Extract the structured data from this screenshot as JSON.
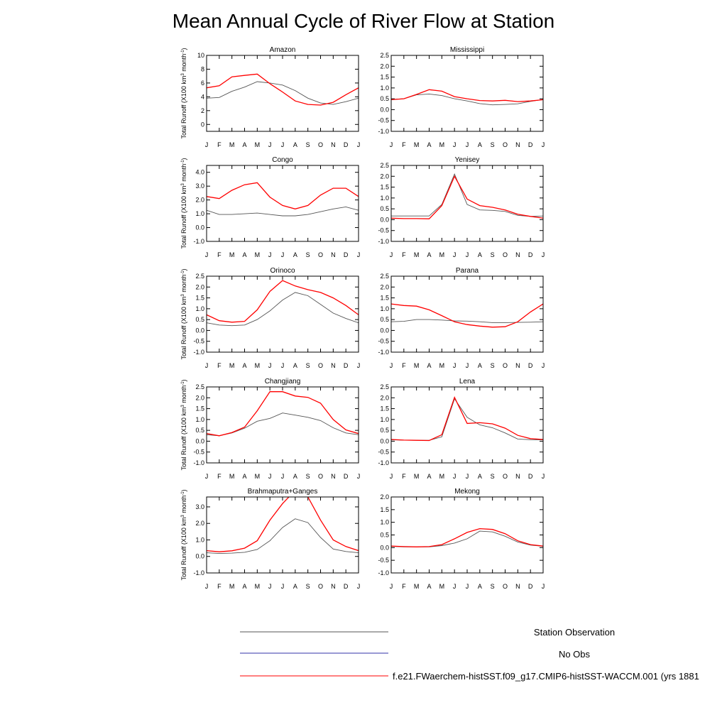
{
  "title": "Mean Annual Cycle of River Flow at Station",
  "ylabel": "Total Runoff (X100 km",
  "ylabel_sup": "3",
  "ylabel_tail": " month",
  "ylabel_sup2": "-1",
  "ylabel_end": ")",
  "legend": [
    {
      "label": "Station Observation",
      "color": "#555555"
    },
    {
      "label": "No Obs",
      "color": "#3333aa"
    },
    {
      "label": "f.e21.FWaerchem-histSST.f09_g17.CMIP6-histSST-WACCM.001 (yrs 1881",
      "color": "#ff0000"
    }
  ],
  "chart_data": [
    {
      "type": "line",
      "title": "Amazon",
      "categories": [
        "J",
        "F",
        "M",
        "A",
        "M",
        "J",
        "J",
        "A",
        "S",
        "O",
        "N",
        "D",
        "J"
      ],
      "ylim": [
        -1,
        10
      ],
      "yticks": [
        "10",
        "8",
        "6",
        "4",
        "2",
        "0"
      ],
      "ytick_values": [
        10,
        8,
        6,
        4,
        2,
        0
      ],
      "series": [
        {
          "name": "Station Observation",
          "color": "#555555",
          "values": [
            3.8,
            3.9,
            4.8,
            5.4,
            6.2,
            6.0,
            5.7,
            4.9,
            3.8,
            3.1,
            2.9,
            3.3,
            3.8
          ]
        },
        {
          "name": "f.e21.FWaerchem-histSST.f09_g17.CMIP6-histSST-WACCM.001",
          "color": "#ff0000",
          "values": [
            5.3,
            5.6,
            6.9,
            7.1,
            7.3,
            5.9,
            4.7,
            3.4,
            2.9,
            2.8,
            3.2,
            4.3,
            5.3
          ]
        }
      ]
    },
    {
      "type": "line",
      "title": "Mississippi",
      "categories": [
        "J",
        "F",
        "M",
        "A",
        "M",
        "J",
        "J",
        "A",
        "S",
        "O",
        "N",
        "D",
        "J"
      ],
      "ylim": [
        -1,
        2.5
      ],
      "yticks": [
        "2.5",
        "2.0",
        "1.5",
        "1.0",
        "0.5",
        "0.0",
        "-0.5",
        "-1.0"
      ],
      "ytick_values": [
        2.5,
        2.0,
        1.5,
        1.0,
        0.5,
        0.0,
        -0.5,
        -1.0
      ],
      "series": [
        {
          "name": "Station Observation",
          "color": "#555555",
          "values": [
            0.47,
            0.5,
            0.68,
            0.72,
            0.65,
            0.5,
            0.4,
            0.28,
            0.22,
            0.24,
            0.27,
            0.38,
            0.47
          ]
        },
        {
          "name": "f.e21.FWaerchem-histSST.f09_g17.CMIP6-histSST-WACCM.001",
          "color": "#ff0000",
          "values": [
            0.46,
            0.5,
            0.7,
            0.92,
            0.85,
            0.6,
            0.5,
            0.42,
            0.4,
            0.43,
            0.37,
            0.4,
            0.46
          ]
        }
      ]
    },
    {
      "type": "line",
      "title": "Congo",
      "categories": [
        "J",
        "F",
        "M",
        "A",
        "M",
        "J",
        "J",
        "A",
        "S",
        "O",
        "N",
        "D",
        "J"
      ],
      "ylim": [
        -1,
        4.5
      ],
      "yticks": [
        "4.0",
        "3.0",
        "2.0",
        "1.0",
        "0.0",
        "-1.0"
      ],
      "ytick_values": [
        4,
        3,
        2,
        1,
        0,
        -1
      ],
      "series": [
        {
          "name": "Station Observation",
          "color": "#555555",
          "values": [
            1.25,
            0.95,
            0.95,
            1.0,
            1.05,
            0.95,
            0.85,
            0.85,
            0.95,
            1.15,
            1.35,
            1.5,
            1.25
          ]
        },
        {
          "name": "f.e21.FWaerchem-histSST.f09_g17.CMIP6-histSST-WACCM.001",
          "color": "#ff0000",
          "values": [
            2.25,
            2.1,
            2.7,
            3.1,
            3.25,
            2.2,
            1.6,
            1.35,
            1.6,
            2.35,
            2.85,
            2.85,
            2.25
          ]
        }
      ]
    },
    {
      "type": "line",
      "title": "Yenisey",
      "categories": [
        "J",
        "F",
        "M",
        "A",
        "M",
        "J",
        "J",
        "A",
        "S",
        "O",
        "N",
        "D",
        "J"
      ],
      "ylim": [
        -1,
        2.5
      ],
      "yticks": [
        "2.5",
        "2.0",
        "1.5",
        "1.0",
        "0.5",
        "0.0",
        "-0.5",
        "-1.0"
      ],
      "ytick_values": [
        2.5,
        2.0,
        1.5,
        1.0,
        0.5,
        0.0,
        -0.5,
        -1.0
      ],
      "series": [
        {
          "name": "Station Observation",
          "color": "#555555",
          "values": [
            0.17,
            0.17,
            0.17,
            0.17,
            0.7,
            2.1,
            0.7,
            0.45,
            0.43,
            0.38,
            0.2,
            0.15,
            0.17
          ]
        },
        {
          "name": "f.e21.FWaerchem-histSST.f09_g17.CMIP6-histSST-WACCM.001",
          "color": "#ff0000",
          "values": [
            0.07,
            0.05,
            0.05,
            0.04,
            0.65,
            2.0,
            0.95,
            0.65,
            0.57,
            0.45,
            0.25,
            0.15,
            0.07
          ]
        }
      ]
    },
    {
      "type": "line",
      "title": "Orinoco",
      "categories": [
        "J",
        "F",
        "M",
        "A",
        "M",
        "J",
        "J",
        "A",
        "S",
        "O",
        "N",
        "D",
        "J"
      ],
      "ylim": [
        -1,
        2.5
      ],
      "yticks": [
        "2.5",
        "2.0",
        "1.5",
        "1.0",
        "0.5",
        "0.0",
        "-0.5",
        "-1.0"
      ],
      "ytick_values": [
        2.5,
        2.0,
        1.5,
        1.0,
        0.5,
        0.0,
        -0.5,
        -1.0
      ],
      "series": [
        {
          "name": "Station Observation",
          "color": "#555555",
          "values": [
            0.35,
            0.25,
            0.22,
            0.25,
            0.5,
            0.9,
            1.4,
            1.75,
            1.6,
            1.2,
            0.8,
            0.55,
            0.35
          ]
        },
        {
          "name": "f.e21.FWaerchem-histSST.f09_g17.CMIP6-histSST-WACCM.001",
          "color": "#ff0000",
          "values": [
            0.72,
            0.45,
            0.38,
            0.42,
            0.95,
            1.8,
            2.3,
            2.05,
            1.88,
            1.75,
            1.5,
            1.15,
            0.72
          ]
        }
      ]
    },
    {
      "type": "line",
      "title": "Parana",
      "categories": [
        "J",
        "F",
        "M",
        "A",
        "M",
        "J",
        "J",
        "A",
        "S",
        "O",
        "N",
        "D",
        "J"
      ],
      "ylim": [
        -1,
        2.5
      ],
      "yticks": [
        "2.5",
        "2.0",
        "1.5",
        "1.0",
        "0.5",
        "0.0",
        "-0.5",
        "-1.0"
      ],
      "ytick_values": [
        2.5,
        2.0,
        1.5,
        1.0,
        0.5,
        0.0,
        -0.5,
        -1.0
      ],
      "series": [
        {
          "name": "Station Observation",
          "color": "#555555",
          "values": [
            0.4,
            0.42,
            0.5,
            0.5,
            0.48,
            0.44,
            0.43,
            0.4,
            0.36,
            0.36,
            0.37,
            0.38,
            0.4
          ]
        },
        {
          "name": "f.e21.FWaerchem-histSST.f09_g17.CMIP6-histSST-WACCM.001",
          "color": "#ff0000",
          "values": [
            1.22,
            1.15,
            1.12,
            0.95,
            0.68,
            0.4,
            0.27,
            0.2,
            0.15,
            0.17,
            0.4,
            0.85,
            1.22
          ]
        }
      ]
    },
    {
      "type": "line",
      "title": "Changjiang",
      "categories": [
        "J",
        "F",
        "M",
        "A",
        "M",
        "J",
        "J",
        "A",
        "S",
        "O",
        "N",
        "D",
        "J"
      ],
      "ylim": [
        -1,
        2.5
      ],
      "yticks": [
        "2.5",
        "2.0",
        "1.5",
        "1.0",
        "0.5",
        "0.0",
        "-0.5",
        "-1.0"
      ],
      "ytick_values": [
        2.5,
        2.0,
        1.5,
        1.0,
        0.5,
        0.0,
        -0.5,
        -1.0
      ],
      "series": [
        {
          "name": "Station Observation",
          "color": "#555555",
          "values": [
            0.3,
            0.25,
            0.38,
            0.6,
            0.92,
            1.05,
            1.3,
            1.2,
            1.1,
            0.95,
            0.62,
            0.38,
            0.3
          ]
        },
        {
          "name": "f.e21.FWaerchem-histSST.f09_g17.CMIP6-histSST-WACCM.001",
          "color": "#ff0000",
          "values": [
            0.35,
            0.25,
            0.4,
            0.65,
            1.4,
            2.28,
            2.28,
            2.08,
            2.02,
            1.75,
            1.0,
            0.52,
            0.35
          ]
        }
      ]
    },
    {
      "type": "line",
      "title": "Lena",
      "categories": [
        "J",
        "F",
        "M",
        "A",
        "M",
        "J",
        "J",
        "A",
        "S",
        "O",
        "N",
        "D",
        "J"
      ],
      "ylim": [
        -1,
        2.5
      ],
      "yticks": [
        "2.5",
        "2.0",
        "1.5",
        "1.0",
        "0.5",
        "0.0",
        "-0.5",
        "-1.0"
      ],
      "ytick_values": [
        2.5,
        2.0,
        1.5,
        1.0,
        0.5,
        0.0,
        -0.5,
        -1.0
      ],
      "series": [
        {
          "name": "Station Observation",
          "color": "#555555",
          "values": [
            0.06,
            0.05,
            0.04,
            0.04,
            0.2,
            1.95,
            1.1,
            0.75,
            0.62,
            0.38,
            0.1,
            0.07,
            0.06
          ]
        },
        {
          "name": "f.e21.FWaerchem-histSST.f09_g17.CMIP6-histSST-WACCM.001",
          "color": "#ff0000",
          "values": [
            0.08,
            0.05,
            0.04,
            0.03,
            0.3,
            2.02,
            0.82,
            0.85,
            0.8,
            0.6,
            0.27,
            0.12,
            0.08
          ]
        }
      ]
    },
    {
      "type": "line",
      "title": "Brahmaputra+Ganges",
      "categories": [
        "J",
        "F",
        "M",
        "A",
        "M",
        "J",
        "J",
        "A",
        "S",
        "O",
        "N",
        "D",
        "J"
      ],
      "ylim": [
        -1,
        3.6
      ],
      "yticks": [
        "3.0",
        "2.0",
        "1.0",
        "0.0",
        "-1.0"
      ],
      "ytick_values": [
        3,
        2,
        1,
        0,
        -1
      ],
      "series": [
        {
          "name": "Station Observation",
          "color": "#555555",
          "values": [
            0.22,
            0.18,
            0.2,
            0.25,
            0.42,
            0.95,
            1.75,
            2.28,
            2.05,
            1.15,
            0.45,
            0.3,
            0.22
          ]
        },
        {
          "name": "f.e21.FWaerchem-histSST.f09_g17.CMIP6-histSST-WACCM.001",
          "color": "#ff0000",
          "values": [
            0.35,
            0.28,
            0.34,
            0.5,
            0.95,
            2.2,
            3.2,
            4.0,
            3.6,
            2.2,
            1.0,
            0.6,
            0.35
          ]
        }
      ]
    },
    {
      "type": "line",
      "title": "Mekong",
      "categories": [
        "J",
        "F",
        "M",
        "A",
        "M",
        "J",
        "J",
        "A",
        "S",
        "O",
        "N",
        "D",
        "J"
      ],
      "ylim": [
        -1,
        2.0
      ],
      "yticks": [
        "2.0",
        "1.5",
        "1.0",
        "0.5",
        "0.0",
        "-0.5",
        "-1.0"
      ],
      "ytick_values": [
        2.0,
        1.5,
        1.0,
        0.5,
        0.0,
        -0.5,
        -1.0
      ],
      "series": [
        {
          "name": "Station Observation",
          "color": "#555555",
          "values": [
            0.05,
            0.03,
            0.03,
            0.03,
            0.08,
            0.18,
            0.35,
            0.65,
            0.62,
            0.45,
            0.22,
            0.1,
            0.05
          ]
        },
        {
          "name": "f.e21.FWaerchem-histSST.f09_g17.CMIP6-histSST-WACCM.001",
          "color": "#ff0000",
          "values": [
            0.06,
            0.04,
            0.03,
            0.04,
            0.12,
            0.35,
            0.6,
            0.75,
            0.72,
            0.55,
            0.27,
            0.12,
            0.06
          ]
        }
      ]
    }
  ]
}
